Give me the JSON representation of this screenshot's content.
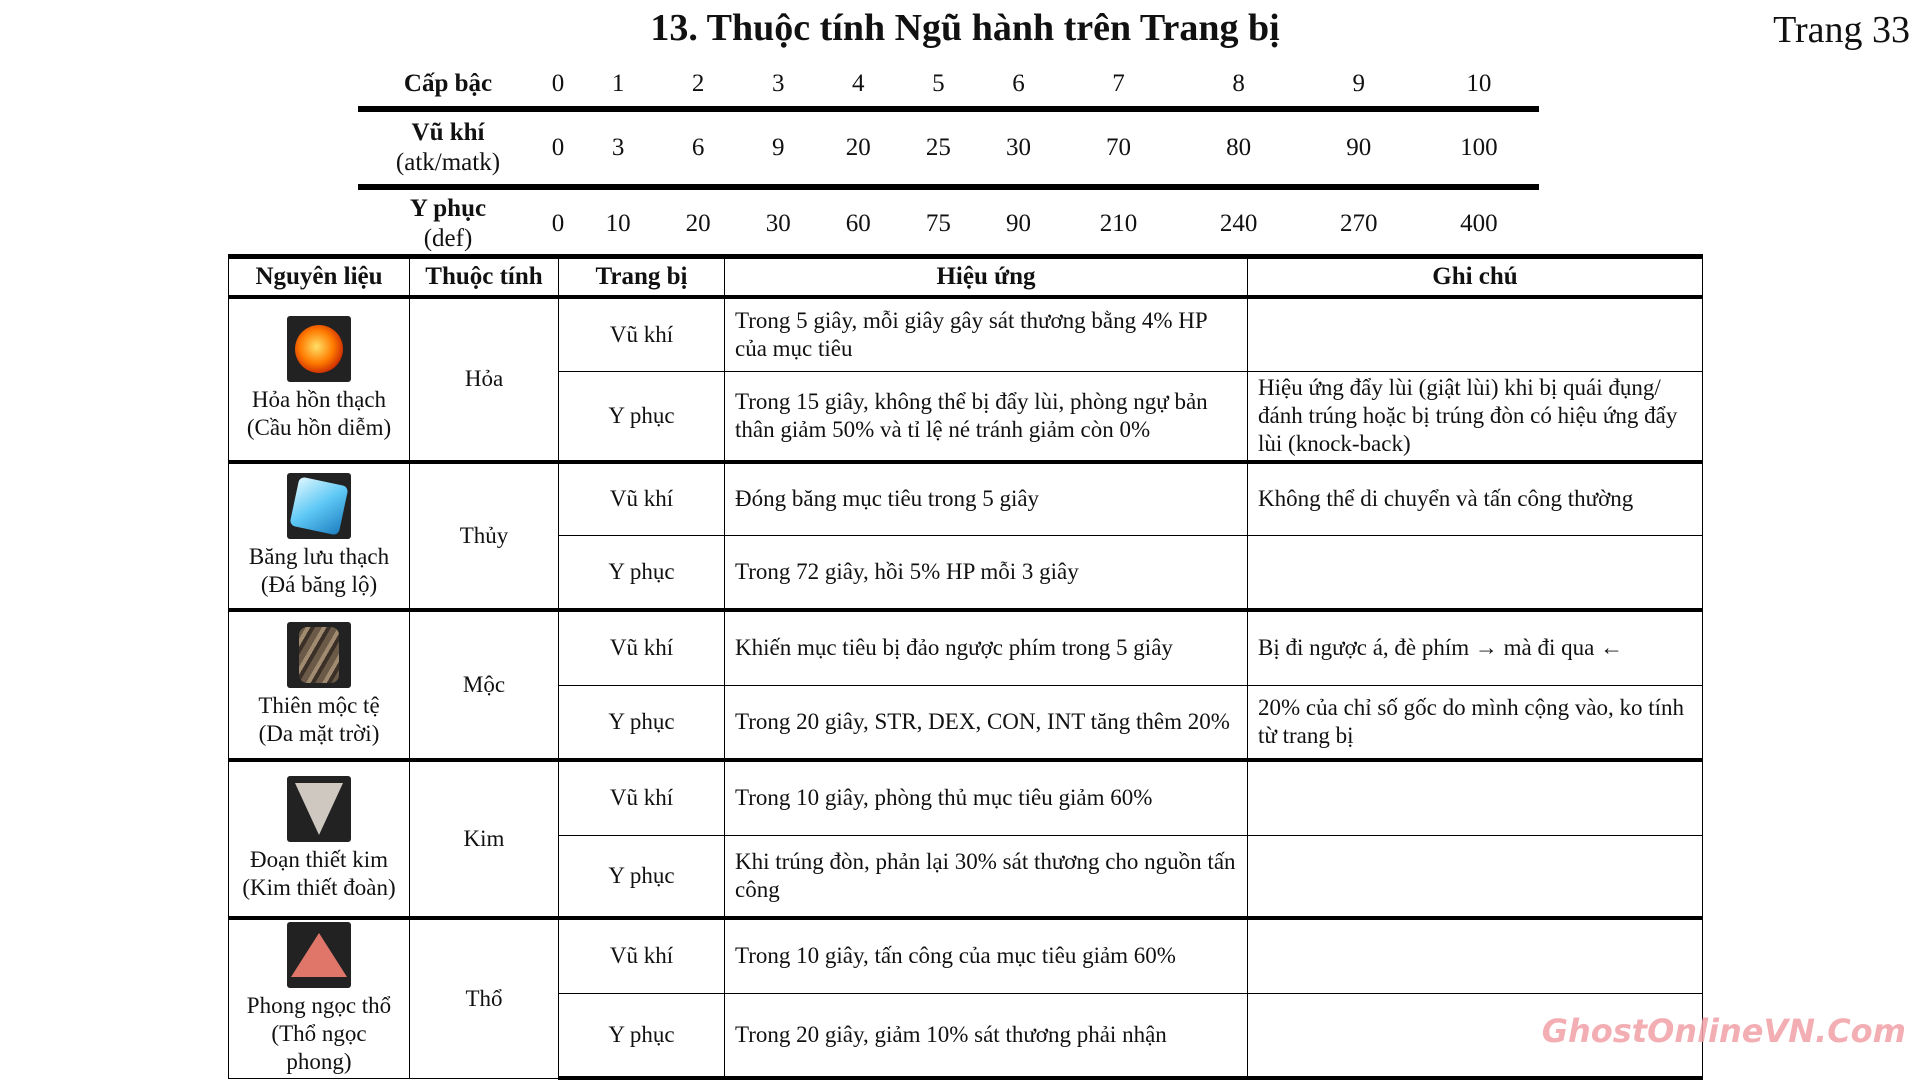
{
  "title": "13. Thuộc tính Ngũ hành trên Trang bị",
  "page": "Trang 33",
  "levels": {
    "header": "Cấp bậc",
    "values": [
      "0",
      "1",
      "2",
      "3",
      "4",
      "5",
      "6",
      "7",
      "8",
      "9",
      "10"
    ],
    "weapon_label": "Vũ khí",
    "weapon_sub": "(atk/matk)",
    "weapon": [
      "0",
      "3",
      "6",
      "9",
      "20",
      "25",
      "30",
      "70",
      "80",
      "90",
      "100"
    ],
    "armor_label": "Y phục",
    "armor_sub": "(def)",
    "armor": [
      "0",
      "10",
      "20",
      "30",
      "60",
      "75",
      "90",
      "210",
      "240",
      "270",
      "400"
    ]
  },
  "table": {
    "headers": [
      "Nguyên liệu",
      "Thuộc tính",
      "Trang bị",
      "Hiệu ứng",
      "Ghi chú"
    ],
    "groups": [
      {
        "icon": "fire-stone-icon",
        "material": "Hỏa hồn thạch",
        "alt": "(Cầu hồn diễm)",
        "element": "Hỏa",
        "rows": [
          {
            "equip": "Vũ khí",
            "effect": "Trong 5 giây, mỗi giây gây sát thương bằng 4% HP của mục tiêu",
            "note": ""
          },
          {
            "equip": "Y phục",
            "effect": "Trong 15 giây, không thể bị đẩy lùi, phòng ngự bản thân giảm 50% và tỉ lệ né tránh giảm còn 0%",
            "note": "Hiệu ứng đẩy lùi (giật lùi) khi bị quái đụng/đánh trúng hoặc bị trúng đòn có hiệu ứng đẩy lùi (knock-back)"
          }
        ]
      },
      {
        "icon": "ice-stone-icon",
        "material": "Băng lưu thạch",
        "alt": "(Đá băng lộ)",
        "element": "Thủy",
        "rows": [
          {
            "equip": "Vũ khí",
            "effect": "Đóng băng mục tiêu trong 5 giây",
            "note": "Không thể di chuyển và tấn công thường"
          },
          {
            "equip": "Y phục",
            "effect": "Trong 72 giây, hồi 5% HP mỗi 3 giây",
            "note": ""
          }
        ]
      },
      {
        "icon": "wood-icon",
        "material": "Thiên mộc tệ",
        "alt": "(Da mặt trời)",
        "element": "Mộc",
        "rows": [
          {
            "equip": "Vũ khí",
            "effect": "Khiến mục tiêu bị đảo ngược phím trong 5 giây",
            "note": "Bị đi ngược á, đè phím → mà đi qua ←"
          },
          {
            "equip": "Y phục",
            "effect": "Trong 20 giây, STR, DEX, CON, INT tăng thêm 20%",
            "note": "20% của chỉ số gốc do mình cộng vào, ko tính từ trang bị"
          }
        ]
      },
      {
        "icon": "metal-shard-icon",
        "material": "Đoạn thiết kim",
        "alt": "(Kim thiết đoàn)",
        "element": "Kim",
        "rows": [
          {
            "equip": "Vũ khí",
            "effect": "Trong 10 giây, phòng thủ mục tiêu giảm 60%",
            "note": ""
          },
          {
            "equip": "Y phục",
            "effect": "Khi trúng đòn, phản lại 30% sát thương cho nguồn tấn công",
            "note": ""
          }
        ]
      },
      {
        "icon": "earth-gem-icon",
        "material": "Phong ngọc thổ",
        "alt": "(Thổ ngọc phong)",
        "element": "Thổ",
        "rows": [
          {
            "equip": "Vũ khí",
            "effect": "Trong 10 giây, tấn công của mục tiêu giảm 60%",
            "note": ""
          },
          {
            "equip": "Y phục",
            "effect": "Trong 20 giây, giảm 10% sát thương phải nhận",
            "note": ""
          }
        ]
      }
    ]
  },
  "watermark": "GhostOnlineVN.Com"
}
